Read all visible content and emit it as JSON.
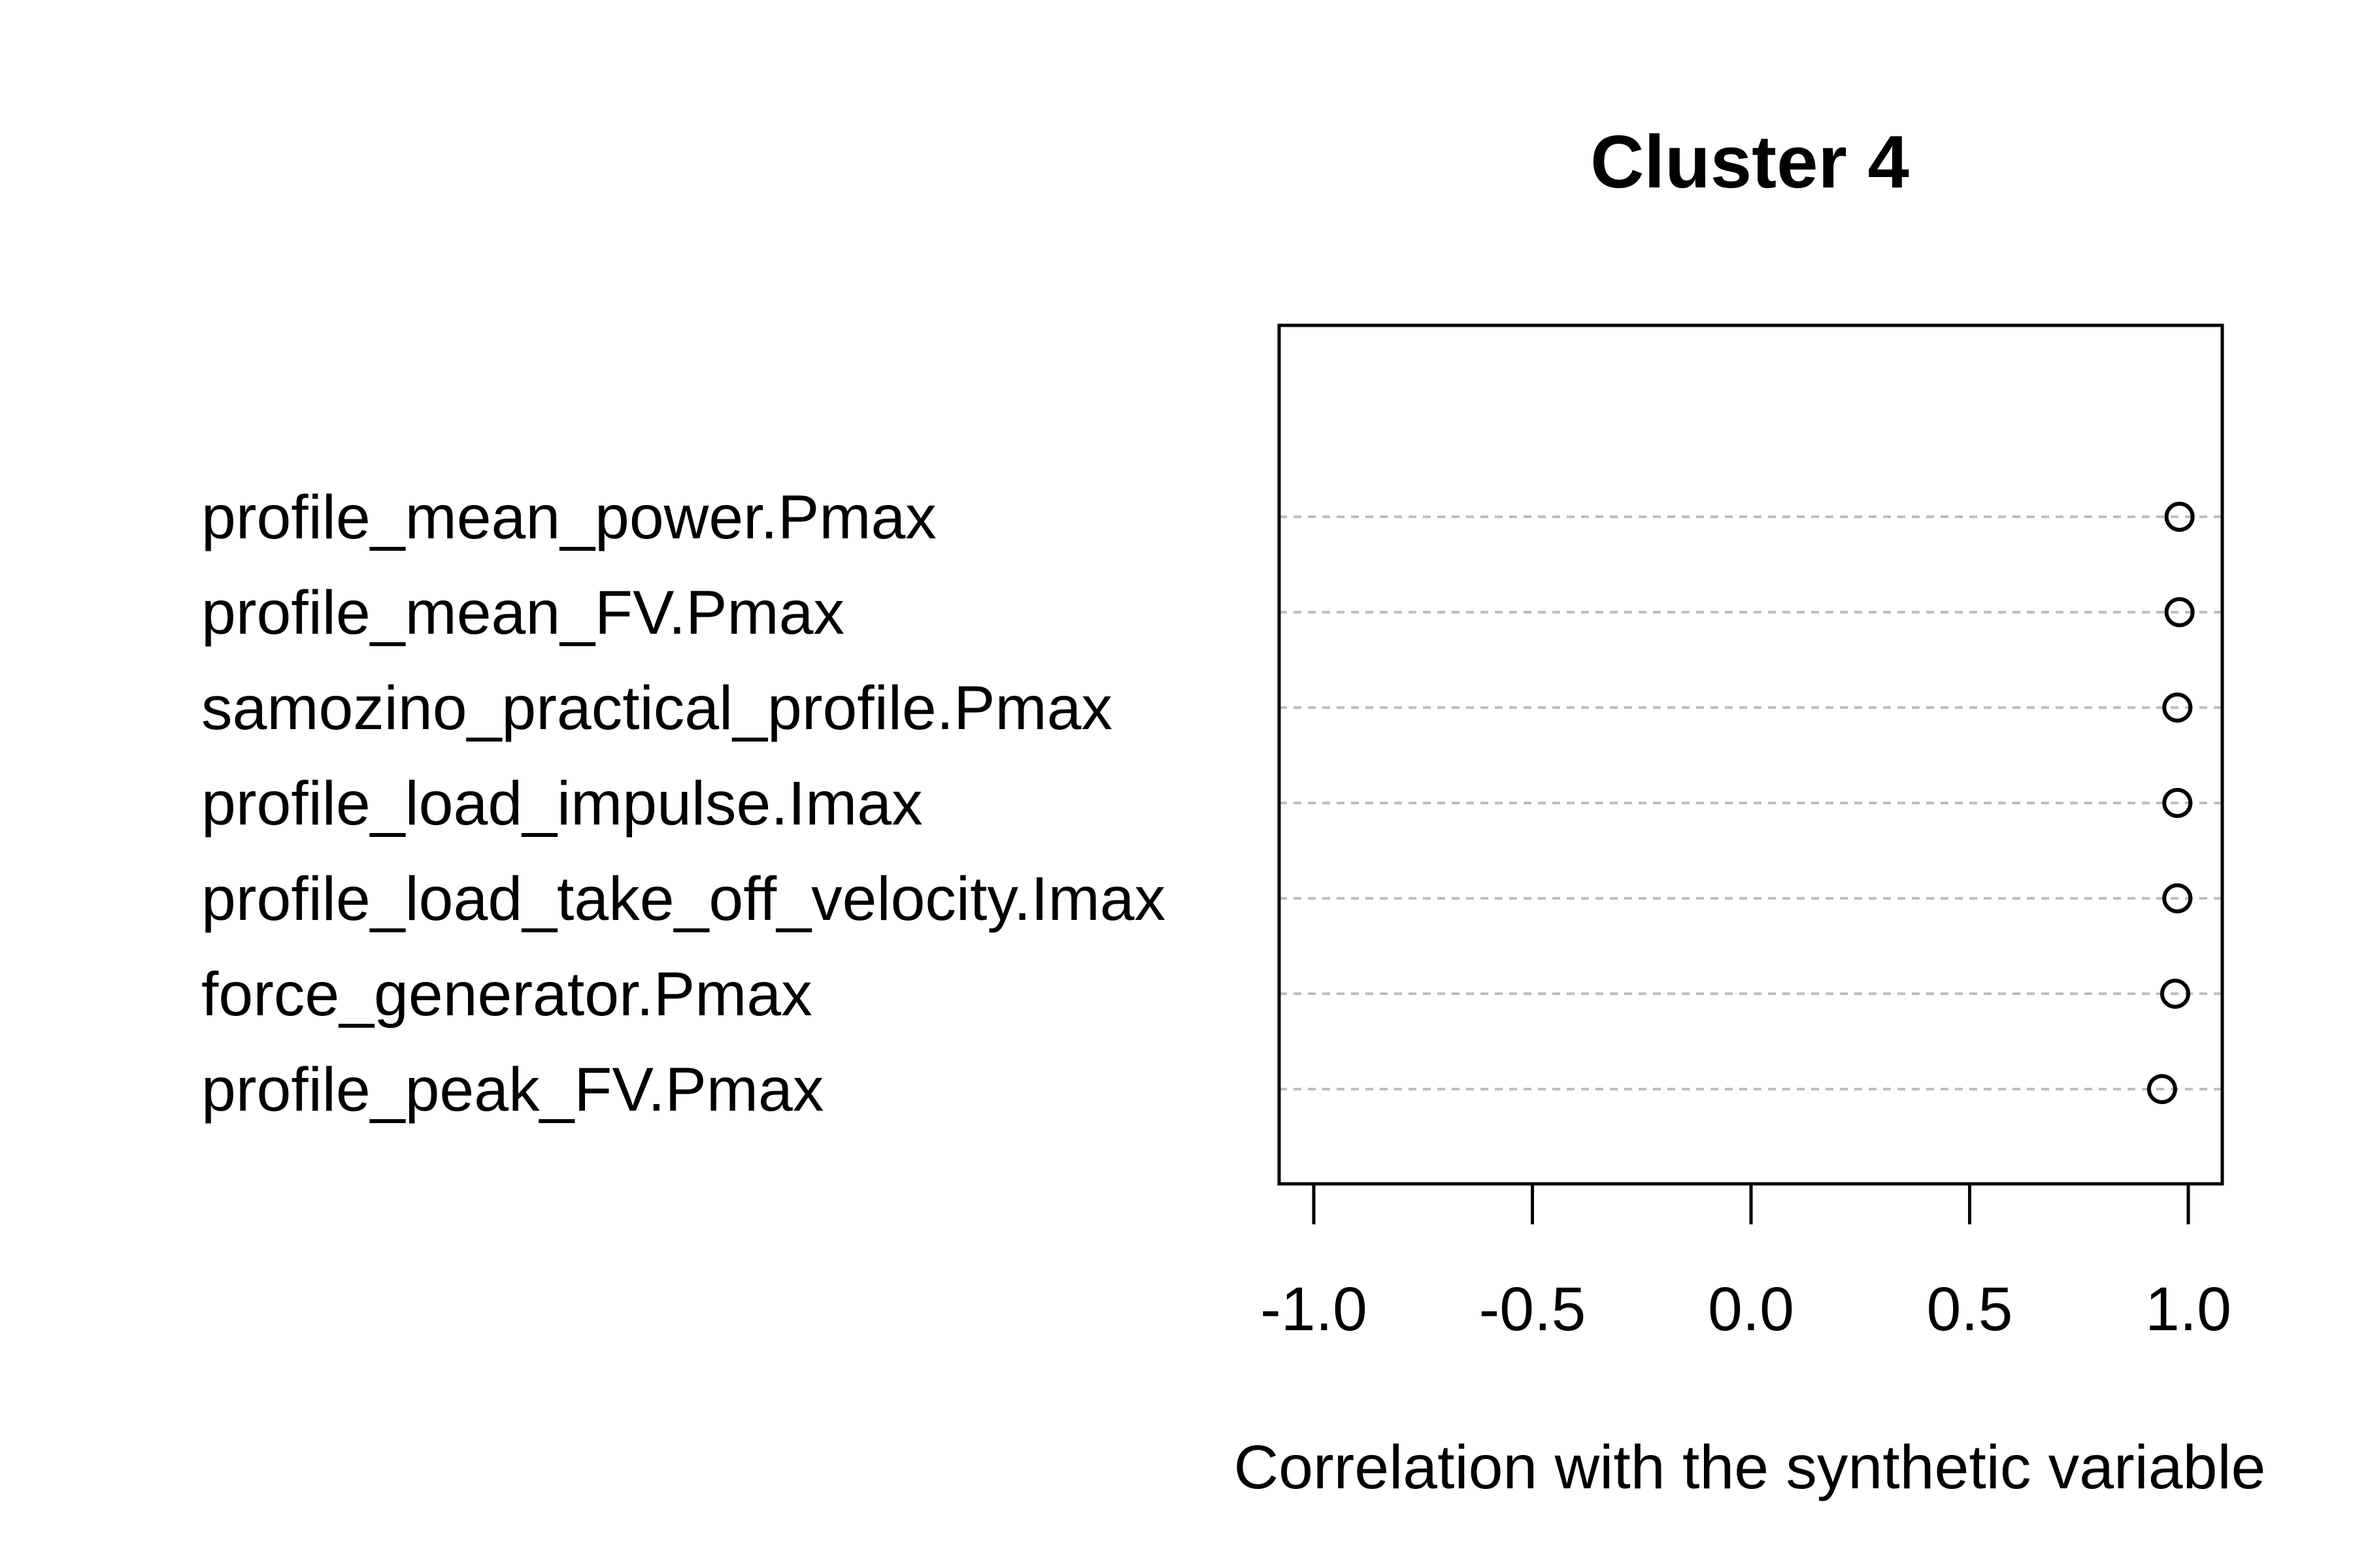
{
  "chart_data": {
    "type": "scatter",
    "title": "Cluster 4",
    "xlabel": "Correlation with the synthetic variable",
    "ylabel": "",
    "xlim": [
      -1.08,
      1.08
    ],
    "xticks": [
      -1.0,
      -0.5,
      0.0,
      0.5,
      1.0
    ],
    "xtick_labels": [
      "-1.0",
      "-0.5",
      "0.0",
      "0.5",
      "1.0"
    ],
    "grid": "horizontal dashed guide lines",
    "legend": "none",
    "categories": [
      "profile_mean_power.Pmax",
      "profile_mean_FV.Pmax",
      "samozino_practical_profile.Pmax",
      "profile_load_impulse.Imax",
      "profile_load_take_off_velocity.Imax",
      "force_generator.Pmax",
      "profile_peak_FV.Pmax"
    ],
    "values": [
      0.98,
      0.98,
      0.975,
      0.975,
      0.975,
      0.97,
      0.94
    ],
    "colors": {
      "marker": "#000000",
      "guide": "#bdbdbd",
      "frame": "#000000"
    }
  }
}
